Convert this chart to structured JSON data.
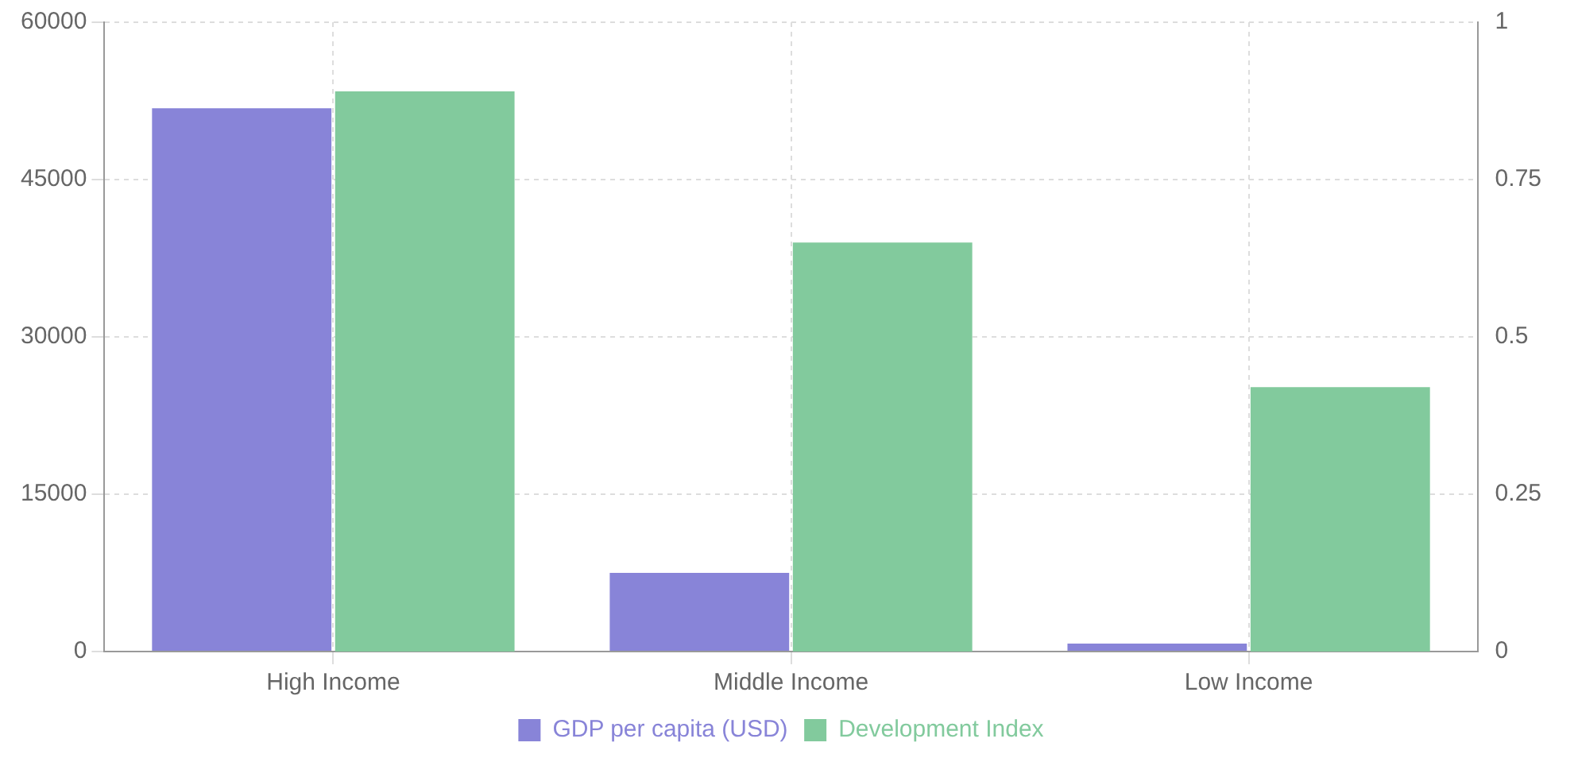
{
  "chart_data": {
    "type": "bar",
    "categories": [
      "High Income",
      "Middle Income",
      "Low Income"
    ],
    "series": [
      {
        "name": "GDP per capita (USD)",
        "color": "#8884d8",
        "values": [
          51800,
          7500,
          750
        ]
      },
      {
        "name": "Development Index",
        "color": "#82ca9d",
        "axis": "y2",
        "values": [
          0.89,
          0.65,
          0.42
        ]
      }
    ],
    "ylim": [
      0,
      60000
    ],
    "yticks": [
      0,
      15000,
      30000,
      45000,
      60000
    ],
    "y2lim": [
      0,
      1
    ],
    "y2ticks": [
      0,
      0.25,
      0.5,
      0.75,
      1
    ],
    "grid": true,
    "legend": "bottom"
  }
}
